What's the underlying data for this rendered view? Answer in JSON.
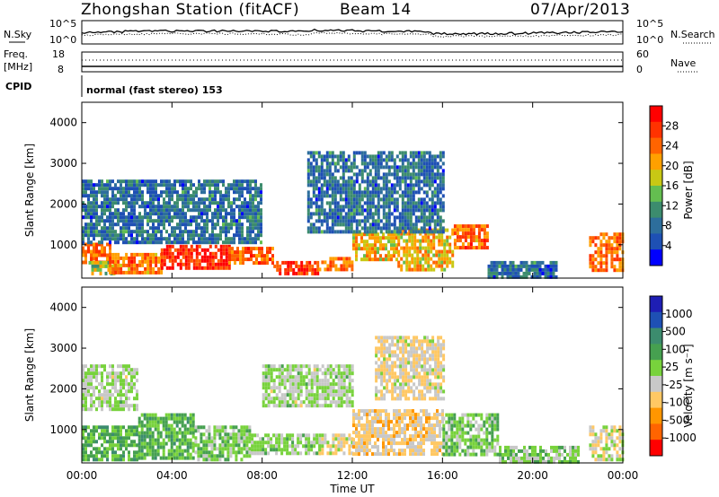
{
  "header": {
    "station": "Zhongshan Station (fitACF)",
    "beam": "Beam 14",
    "date": "07/Apr/2013",
    "cpid_label": "CPID",
    "cpid_value": "normal (fast stereo) 153"
  },
  "noise_panel": {
    "left_label": "N.Sky",
    "right_label": "N.Search",
    "ticks_left": [
      "10^5",
      "10^0"
    ],
    "ticks_right": [
      "10^5",
      "10^0"
    ]
  },
  "freq_panel": {
    "left_label": "Freq.",
    "left_unit": "[MHz]",
    "right_label": "Nave",
    "ticks_left": [
      "18",
      "8"
    ],
    "ticks_right": [
      "60",
      "0"
    ]
  },
  "x_axis": {
    "label": "Time UT",
    "ticks": [
      "00:00",
      "04:00",
      "08:00",
      "12:00",
      "16:00",
      "20:00",
      "00:00"
    ]
  },
  "y_axis": {
    "label": "Slant Range [km]",
    "ticks": [
      "1000",
      "2000",
      "3000",
      "4000"
    ]
  },
  "colors": {
    "power_scale": [
      "#0000ff",
      "#1e50b4",
      "#2d6e9c",
      "#3c8c6e",
      "#64be50",
      "#c8c814",
      "#ffa000",
      "#ff6400",
      "#ff3200",
      "#ff0000"
    ],
    "velocity_scale": [
      "#1e1eb4",
      "#1e50b4",
      "#3c8c6e",
      "#46a050",
      "#78d23c",
      "#c8c8c8",
      "#ffc864",
      "#ff9600",
      "#ff6400",
      "#ff0000"
    ]
  },
  "chart_data": [
    {
      "type": "heatmap",
      "title": "",
      "xlabel": "Time UT",
      "ylabel": "Slant Range [km]",
      "x_range_hours": [
        0,
        24
      ],
      "ylim": [
        180,
        4500
      ],
      "colorbar": {
        "label": "Power [dB]",
        "ticks": [
          "4",
          "8",
          "12",
          "16",
          "20",
          "24",
          "28"
        ],
        "range": [
          0,
          32
        ]
      },
      "regions": [
        {
          "t_start": 0.0,
          "t_end": 1.2,
          "r_min": 600,
          "r_max": 1050,
          "value": 24
        },
        {
          "t_start": 0.3,
          "t_end": 1.5,
          "r_min": 300,
          "r_max": 600,
          "value": 16
        },
        {
          "t_start": 1.2,
          "t_end": 3.5,
          "r_min": 300,
          "r_max": 800,
          "value": 24
        },
        {
          "t_start": 3.5,
          "t_end": 6.5,
          "r_min": 450,
          "r_max": 1000,
          "value": 28
        },
        {
          "t_start": 6.5,
          "t_end": 8.5,
          "r_min": 550,
          "r_max": 950,
          "value": 24
        },
        {
          "t_start": 8.5,
          "t_end": 10.5,
          "r_min": 300,
          "r_max": 600,
          "value": 28
        },
        {
          "t_start": 10.5,
          "t_end": 12.0,
          "r_min": 350,
          "r_max": 700,
          "value": 24
        },
        {
          "t_start": 12.0,
          "t_end": 14.0,
          "r_min": 650,
          "r_max": 1300,
          "value": 20
        },
        {
          "t_start": 14.0,
          "t_end": 16.5,
          "r_min": 400,
          "r_max": 1400,
          "value": 20
        },
        {
          "t_start": 16.5,
          "t_end": 18.0,
          "r_min": 900,
          "r_max": 1500,
          "value": 24
        },
        {
          "t_start": 18.0,
          "t_end": 21.0,
          "r_min": 200,
          "r_max": 600,
          "value": 8
        },
        {
          "t_start": 22.5,
          "t_end": 24.0,
          "r_min": 400,
          "r_max": 1300,
          "value": 24
        },
        {
          "t_start": 0.0,
          "t_end": 8.0,
          "r_min": 1100,
          "r_max": 2600,
          "value": 8
        },
        {
          "t_start": 10.0,
          "t_end": 16.0,
          "r_min": 1300,
          "r_max": 3300,
          "value": 8
        }
      ]
    },
    {
      "type": "heatmap",
      "title": "",
      "xlabel": "Time UT",
      "ylabel": "Slant Range [km]",
      "x_range_hours": [
        0,
        24
      ],
      "ylim": [
        180,
        4500
      ],
      "colorbar": {
        "label": "Velocity [m s⁻¹]",
        "ticks": [
          "1000",
          "500",
          "100",
          "25",
          "-25",
          "-100",
          "-500",
          "-1000"
        ],
        "range": [
          -1200,
          1200
        ]
      },
      "regions": [
        {
          "t_start": 0.0,
          "t_end": 2.5,
          "r_min": 300,
          "r_max": 1100,
          "value": 300
        },
        {
          "t_start": 0.0,
          "t_end": 2.5,
          "r_min": 1500,
          "r_max": 2600,
          "value": 0
        },
        {
          "t_start": 2.5,
          "t_end": 5.0,
          "r_min": 300,
          "r_max": 1400,
          "value": 300
        },
        {
          "t_start": 5.0,
          "t_end": 7.5,
          "r_min": 300,
          "r_max": 1100,
          "value": 150
        },
        {
          "t_start": 7.5,
          "t_end": 10.5,
          "r_min": 400,
          "r_max": 900,
          "value": 50
        },
        {
          "t_start": 10.5,
          "t_end": 12.0,
          "r_min": 400,
          "r_max": 900,
          "value": -200
        },
        {
          "t_start": 12.0,
          "t_end": 16.0,
          "r_min": 400,
          "r_max": 1500,
          "value": -300
        },
        {
          "t_start": 16.0,
          "t_end": 18.5,
          "r_min": 400,
          "r_max": 1400,
          "value": 150
        },
        {
          "t_start": 18.5,
          "t_end": 22.0,
          "r_min": 200,
          "r_max": 600,
          "value": 100
        },
        {
          "t_start": 22.5,
          "t_end": 24.0,
          "r_min": 300,
          "r_max": 1100,
          "value": -150
        },
        {
          "t_start": 8.0,
          "t_end": 12.0,
          "r_min": 1600,
          "r_max": 2600,
          "value": 0
        },
        {
          "t_start": 13.0,
          "t_end": 16.0,
          "r_min": 1800,
          "r_max": 3300,
          "value": -200
        }
      ]
    }
  ]
}
